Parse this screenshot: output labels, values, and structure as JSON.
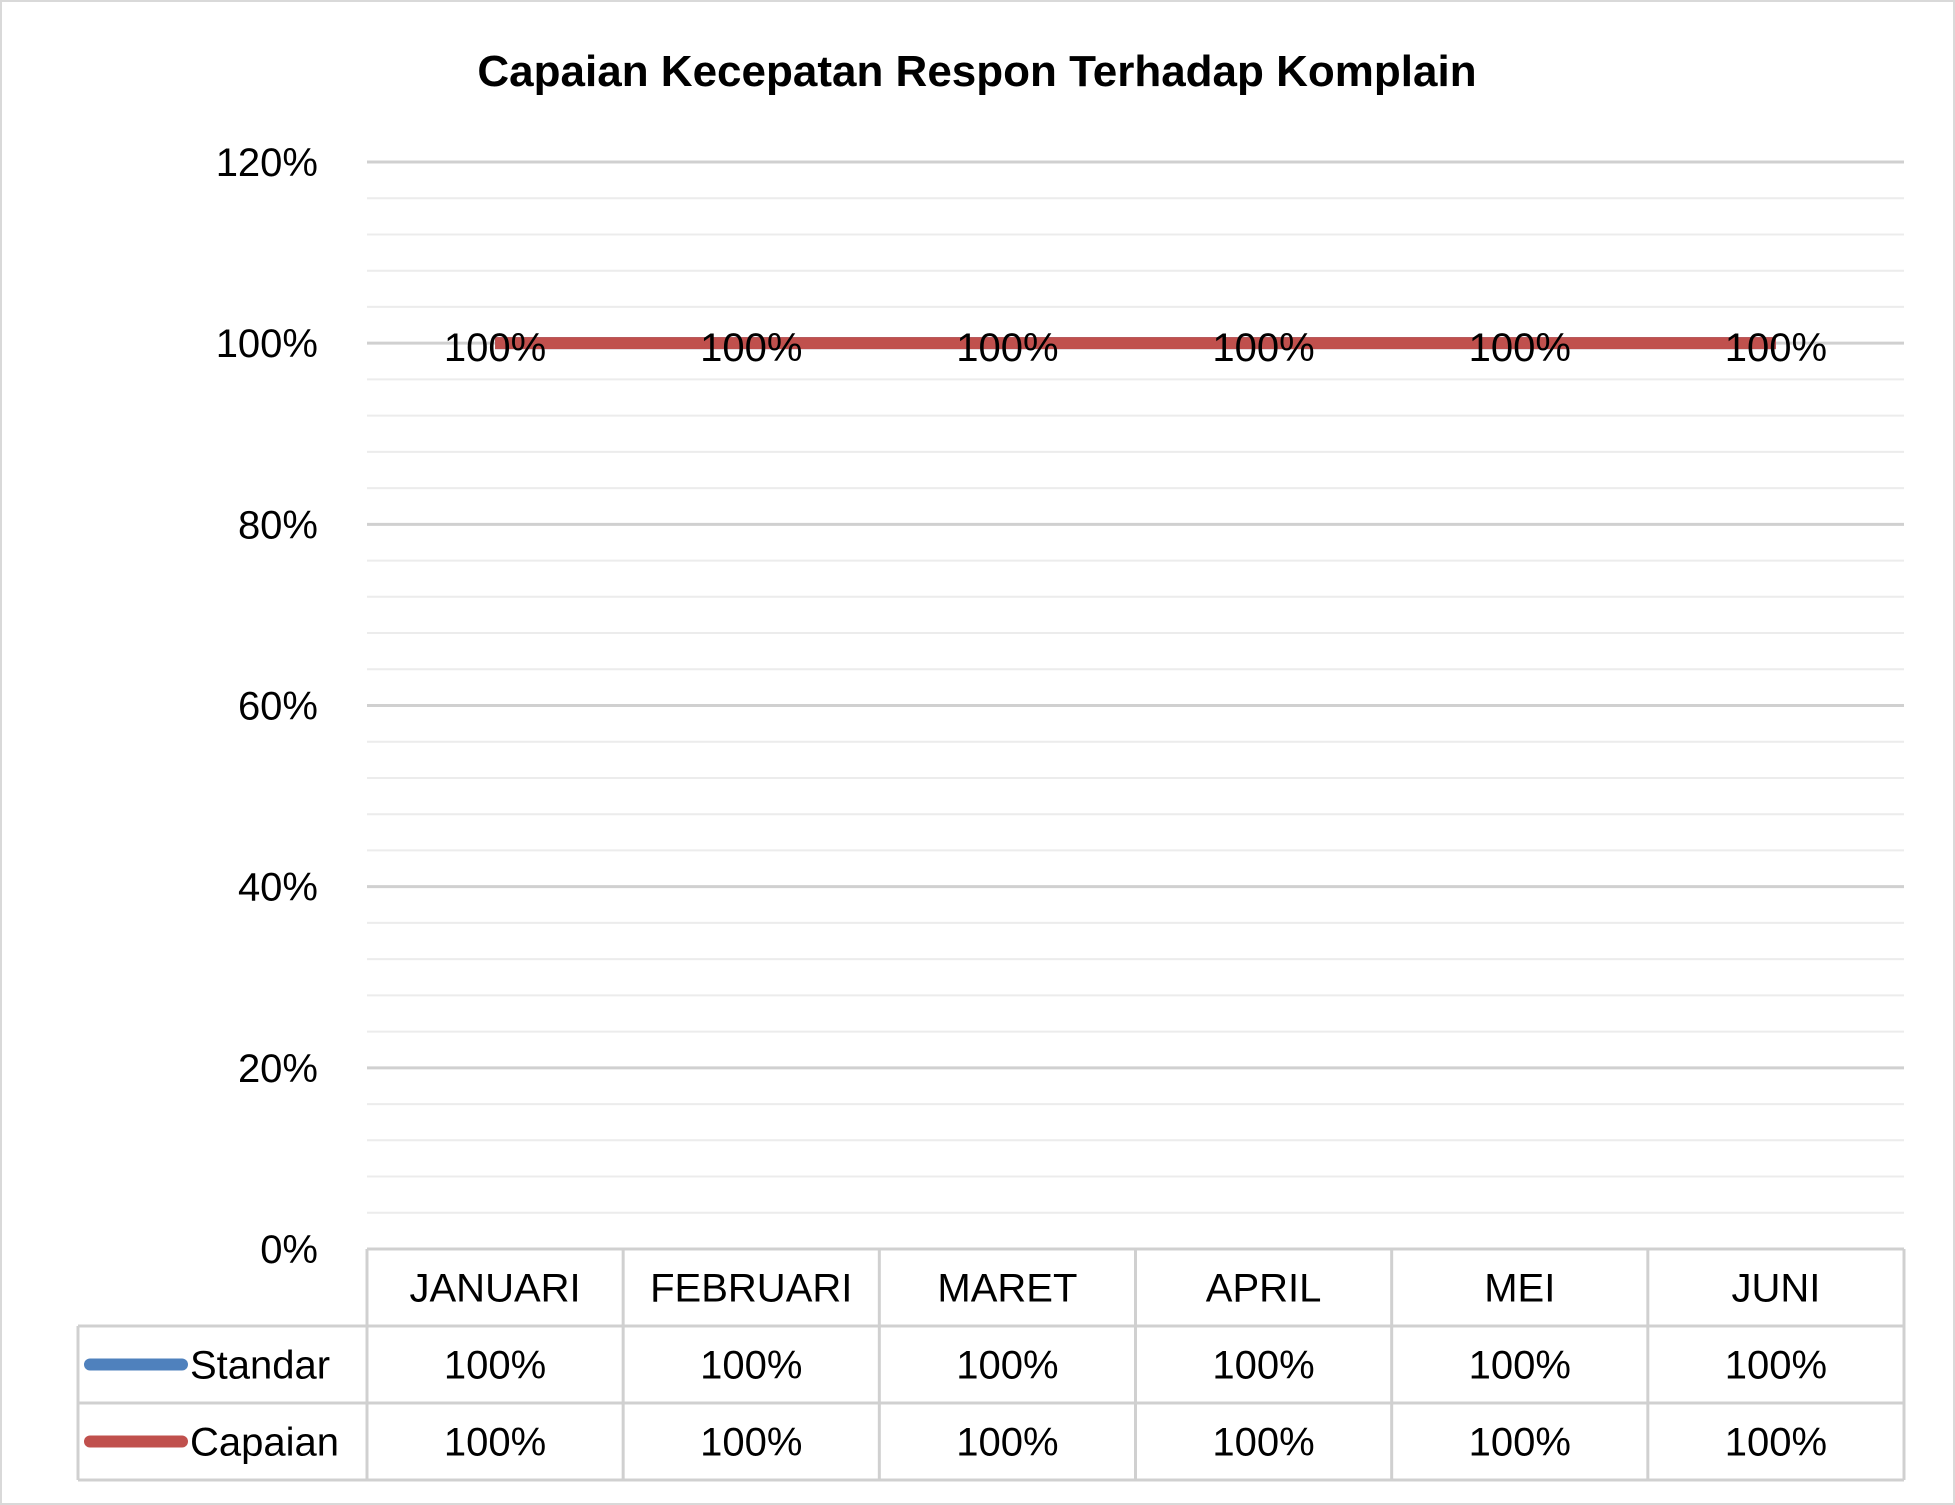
{
  "chart_data": {
    "type": "line",
    "title": "Capaian Kecepatan Respon Terhadap Komplain",
    "categories": [
      "JANUARI",
      "FEBRUARI",
      "MARET",
      "APRIL",
      "MEI",
      "JUNI"
    ],
    "series": [
      {
        "name": "Standar",
        "values": [
          100,
          100,
          100,
          100,
          100,
          100
        ],
        "labels": [
          "100%",
          "100%",
          "100%",
          "100%",
          "100%",
          "100%"
        ],
        "color": "#4f81bd"
      },
      {
        "name": "Capaian",
        "values": [
          100,
          100,
          100,
          100,
          100,
          100
        ],
        "labels": [
          "100%",
          "100%",
          "100%",
          "100%",
          "100%",
          "100%"
        ],
        "color": "#c0504d"
      }
    ],
    "data_labels": [
      "100%",
      "100%",
      "100%",
      "100%",
      "100%",
      "100%"
    ],
    "ylim": [
      0,
      120
    ],
    "yticks": [
      0,
      20,
      40,
      60,
      80,
      100,
      120
    ],
    "ytick_labels": [
      "0%",
      "20%",
      "40%",
      "60%",
      "80%",
      "100%",
      "120%"
    ],
    "grid": true,
    "legend": "data-table-bottom"
  }
}
